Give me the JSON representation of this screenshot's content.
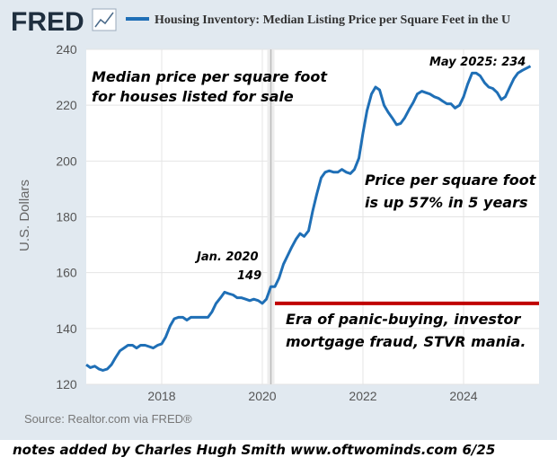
{
  "header": {
    "logo": "FRED",
    "legend_label": "Housing Inventory: Median Listing Price per Square Feet in the U"
  },
  "chart_data": {
    "type": "line",
    "title": "Housing Inventory: Median Listing Price per Square Feet in the U",
    "ylabel": "U.S. Dollars",
    "xlabel": "",
    "ylim": [
      120,
      240
    ],
    "xlim": [
      2016.5,
      2025.5
    ],
    "y_ticks": [
      120,
      140,
      160,
      180,
      200,
      220,
      240
    ],
    "x_ticks": [
      2018,
      2020,
      2022,
      2024
    ],
    "grid": true,
    "series": [
      {
        "name": "Housing Inventory: Median Listing Price per Square Feet in the U",
        "color": "#1f6fb6",
        "points": [
          [
            2016.5,
            127
          ],
          [
            2016.58,
            126
          ],
          [
            2016.67,
            126.5
          ],
          [
            2016.75,
            125.5
          ],
          [
            2016.83,
            125
          ],
          [
            2016.92,
            125.5
          ],
          [
            2017.0,
            127
          ],
          [
            2017.08,
            129.5
          ],
          [
            2017.17,
            132
          ],
          [
            2017.25,
            133
          ],
          [
            2017.33,
            134
          ],
          [
            2017.42,
            134
          ],
          [
            2017.5,
            133
          ],
          [
            2017.58,
            134
          ],
          [
            2017.67,
            134
          ],
          [
            2017.75,
            133.5
          ],
          [
            2017.83,
            133
          ],
          [
            2017.92,
            134
          ],
          [
            2018.0,
            134.5
          ],
          [
            2018.08,
            137
          ],
          [
            2018.17,
            141
          ],
          [
            2018.25,
            143.5
          ],
          [
            2018.33,
            144
          ],
          [
            2018.42,
            144
          ],
          [
            2018.5,
            143
          ],
          [
            2018.58,
            144
          ],
          [
            2018.67,
            144
          ],
          [
            2018.75,
            144
          ],
          [
            2018.83,
            144
          ],
          [
            2018.92,
            144
          ],
          [
            2019.0,
            146
          ],
          [
            2019.08,
            149
          ],
          [
            2019.17,
            151
          ],
          [
            2019.25,
            153
          ],
          [
            2019.33,
            152.5
          ],
          [
            2019.42,
            152
          ],
          [
            2019.5,
            151
          ],
          [
            2019.58,
            151
          ],
          [
            2019.67,
            150.5
          ],
          [
            2019.75,
            150
          ],
          [
            2019.83,
            150.5
          ],
          [
            2019.92,
            150
          ],
          [
            2020.0,
            149
          ],
          [
            2020.08,
            150.5
          ],
          [
            2020.17,
            155
          ],
          [
            2020.25,
            155
          ],
          [
            2020.33,
            158
          ],
          [
            2020.42,
            163
          ],
          [
            2020.5,
            166
          ],
          [
            2020.58,
            169
          ],
          [
            2020.67,
            172
          ],
          [
            2020.75,
            174
          ],
          [
            2020.83,
            173
          ],
          [
            2020.92,
            175
          ],
          [
            2021.0,
            182
          ],
          [
            2021.08,
            188
          ],
          [
            2021.17,
            194
          ],
          [
            2021.25,
            196
          ],
          [
            2021.33,
            196.5
          ],
          [
            2021.42,
            196
          ],
          [
            2021.5,
            196
          ],
          [
            2021.58,
            197
          ],
          [
            2021.67,
            196
          ],
          [
            2021.75,
            195.5
          ],
          [
            2021.83,
            197
          ],
          [
            2021.92,
            201
          ],
          [
            2022.0,
            210
          ],
          [
            2022.08,
            218
          ],
          [
            2022.17,
            224
          ],
          [
            2022.25,
            226.5
          ],
          [
            2022.33,
            225.5
          ],
          [
            2022.42,
            220
          ],
          [
            2022.5,
            217.5
          ],
          [
            2022.58,
            215.5
          ],
          [
            2022.67,
            213
          ],
          [
            2022.75,
            213.5
          ],
          [
            2022.83,
            215.5
          ],
          [
            2022.92,
            218.5
          ],
          [
            2023.0,
            221
          ],
          [
            2023.08,
            224
          ],
          [
            2023.17,
            225
          ],
          [
            2023.25,
            224.5
          ],
          [
            2023.33,
            224
          ],
          [
            2023.42,
            223
          ],
          [
            2023.5,
            222.5
          ],
          [
            2023.58,
            221.5
          ],
          [
            2023.67,
            220.5
          ],
          [
            2023.75,
            220.5
          ],
          [
            2023.83,
            219
          ],
          [
            2023.92,
            220
          ],
          [
            2024.0,
            223
          ],
          [
            2024.08,
            227.5
          ],
          [
            2024.17,
            231.5
          ],
          [
            2024.25,
            231.5
          ],
          [
            2024.33,
            230.5
          ],
          [
            2024.42,
            228
          ],
          [
            2024.5,
            226.5
          ],
          [
            2024.58,
            226
          ],
          [
            2024.67,
            224.5
          ],
          [
            2024.75,
            222
          ],
          [
            2024.83,
            223
          ],
          [
            2024.92,
            226.5
          ],
          [
            2025.0,
            229.5
          ],
          [
            2025.08,
            231.5
          ],
          [
            2025.17,
            232.5
          ],
          [
            2025.33,
            234
          ]
        ]
      }
    ],
    "reference_lines": [
      {
        "axis": "x",
        "value": 2020.17,
        "color": "#bbbbbb"
      },
      {
        "axis": "y",
        "value": 149,
        "from_x": 2020.25,
        "to_x": 2025.5,
        "color": "#c00000"
      }
    ]
  },
  "annotations": {
    "median_line1": "Median price per square foot",
    "median_line2": "for houses listed for sale",
    "may2025": "May 2025: 234",
    "jan2020_line1": "Jan. 2020",
    "jan2020_line2": "149",
    "priceup_line1": "Price per square foot",
    "priceup_line2": "is up 57% in 5 years",
    "era_line1": "Era of panic-buying, investor",
    "era_line2": "mortgage fraud, STVR mania."
  },
  "source": "Source: Realtor.com via FRED®",
  "footer_note": "notes added by Charles Hugh Smith  www.oftwominds.com   6/25"
}
